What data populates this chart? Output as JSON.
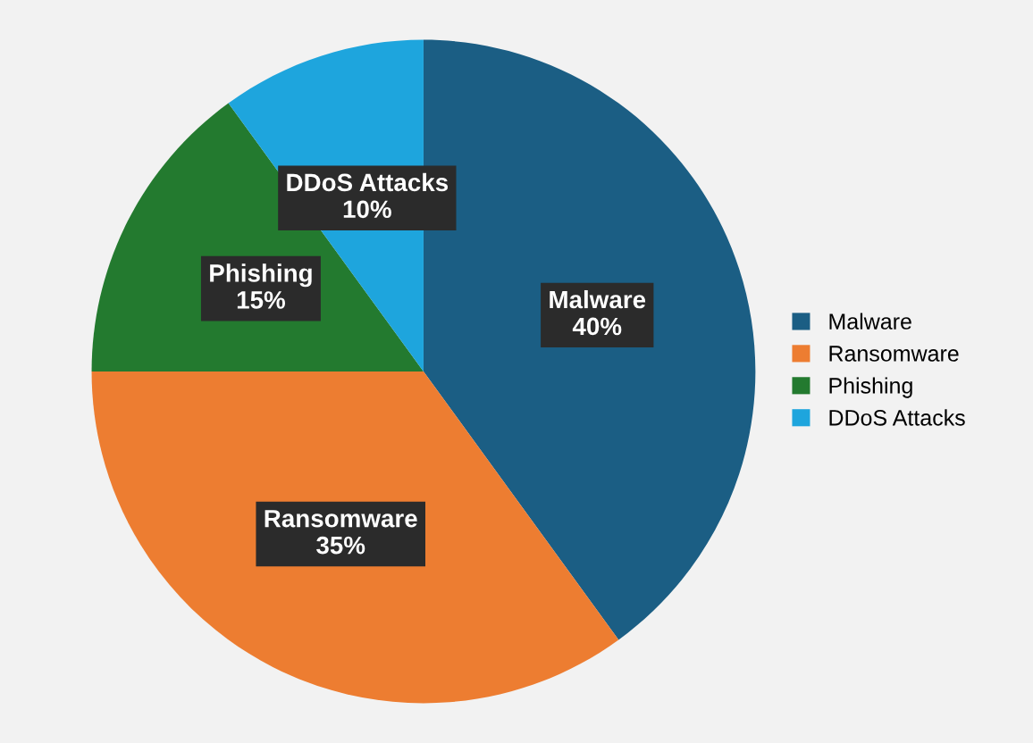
{
  "chart_data": {
    "type": "pie",
    "categories": [
      "Malware",
      "Ransomware",
      "Phishing",
      "DDoS Attacks"
    ],
    "values": [
      40,
      35,
      15,
      10
    ],
    "colors": [
      "#1b5e84",
      "#ed7d31",
      "#237a2f",
      "#1ea5dd"
    ],
    "value_labels": [
      "40%",
      "35%",
      "15%",
      "10%"
    ],
    "legend": "right"
  }
}
